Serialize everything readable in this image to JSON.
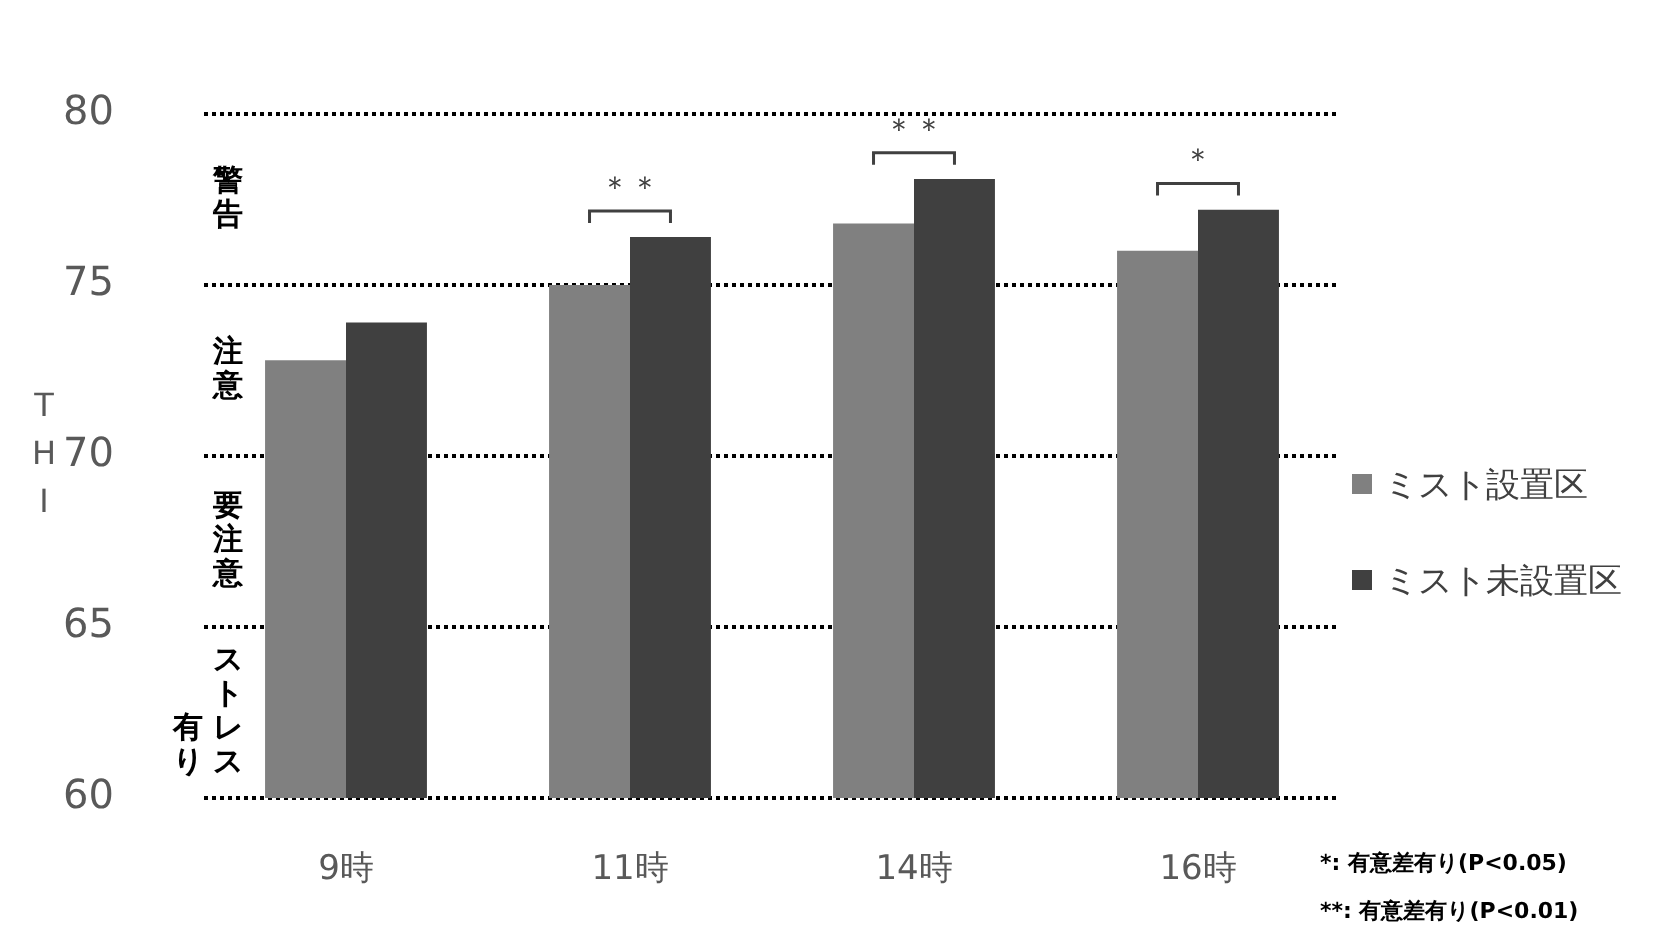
{
  "chart_data": {
    "type": "bar",
    "ylabel": "THI",
    "categories": [
      "9時",
      "11時",
      "14時",
      "16時"
    ],
    "series": [
      {
        "name": "ミスト設置区",
        "color": "#808080",
        "values": [
          72.8,
          75.0,
          76.8,
          76.0
        ]
      },
      {
        "name": "ミスト未設置区",
        "color": "#404040",
        "values": [
          73.9,
          76.4,
          78.1,
          77.2
        ]
      }
    ],
    "ylim": [
      60,
      80
    ],
    "yticks": [
      60,
      65,
      70,
      75,
      80
    ],
    "grid": "y",
    "legend": "right",
    "annotations": [
      "警告",
      "注意",
      "要注意",
      "ストレス有り",
      "＊＊",
      "＊＊",
      "＊",
      "*: 有意差有り(P<0.05)",
      "**: 有意差有り(P<0.01)"
    ]
  }
}
